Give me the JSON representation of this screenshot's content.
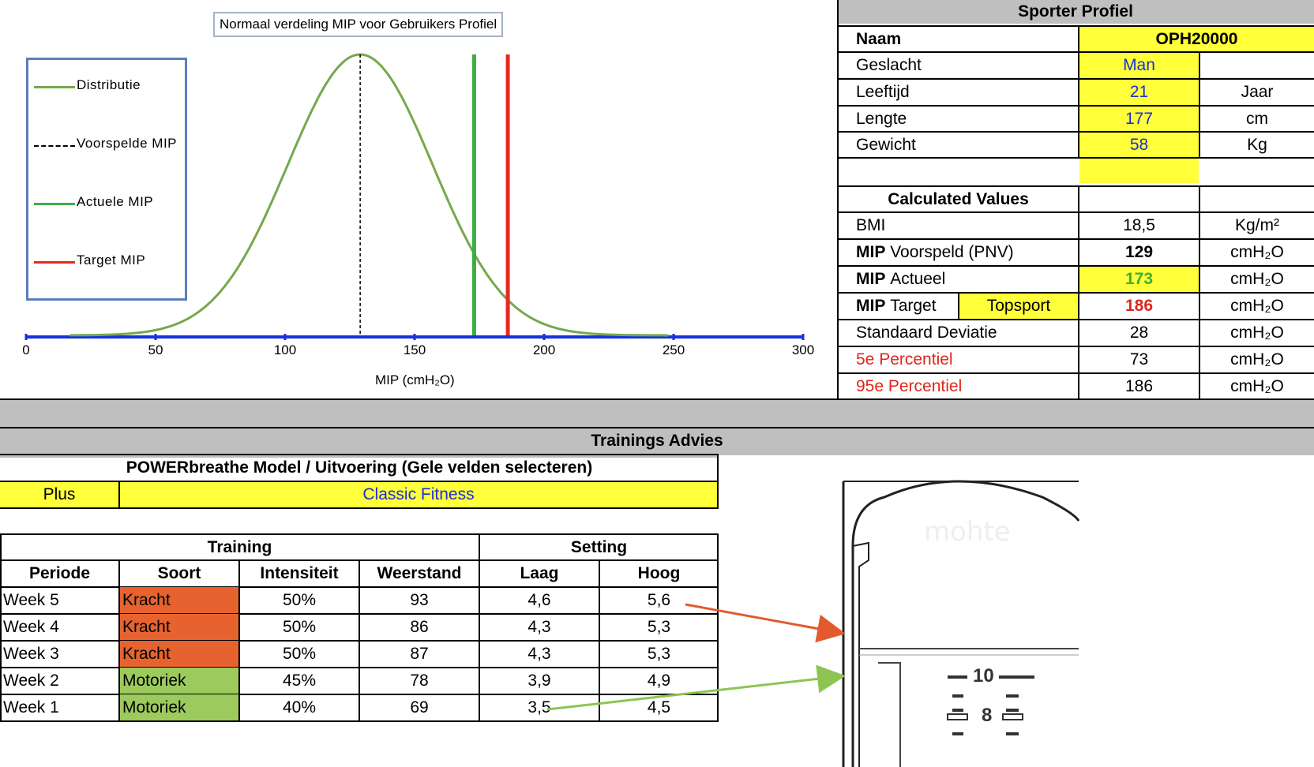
{
  "chart_data": {
    "type": "line",
    "title": "Normaal verdeling MIP voor Gebruikers Profiel",
    "xlabel": "MIP (cmH₂O)",
    "ylabel": "",
    "xlim": [
      0,
      300
    ],
    "x_ticks": [
      "0",
      "50",
      "100",
      "150",
      "200",
      "250",
      "300"
    ],
    "distribution": {
      "mean": 129,
      "sd": 28
    },
    "series": [
      {
        "name": "Distributie",
        "color": "#76a84c",
        "style": "curve"
      },
      {
        "name": "Voorspelde MIP",
        "color": "#000000",
        "style": "dashed",
        "x": 129
      },
      {
        "name": "Actuele MIP",
        "color": "#3dae46",
        "style": "solid",
        "x": 173
      },
      {
        "name": "Target MIP",
        "color": "#e8281e",
        "style": "solid",
        "x": 186
      }
    ],
    "axis_color": "#1433e0",
    "legend_position": "left"
  },
  "profile": {
    "title": "Sporter Profiel",
    "naam_label": "Naam",
    "naam_value": "OPH20000",
    "geslacht_label": "Geslacht",
    "geslacht_value": "Man",
    "leeftijd_label": "Leeftijd",
    "leeftijd_value": "21",
    "leeftijd_unit": "Jaar",
    "lengte_label": "Lengte",
    "lengte_value": "177",
    "lengte_unit": "cm",
    "gewicht_label": "Gewicht",
    "gewicht_value": "58",
    "gewicht_unit": "Kg",
    "calc_title": "Calculated Values",
    "bmi_label": "BMI",
    "bmi_value": "18,5",
    "bmi_unit": "Kg/m²",
    "mip_bold": "MIP",
    "voorspeld_label": "Voorspeld (PNV)",
    "voorspeld_value": "129",
    "actueel_label": "Actueel",
    "actueel_value": "173",
    "target_label": "Target",
    "target_level": "Topsport",
    "target_value": "186",
    "sd_label": "Standaard Deviatie",
    "sd_value": "28",
    "p5_label": "5e Percentiel",
    "p5_value": "73",
    "p95_label": "95e Percentiel",
    "p95_value": "186",
    "unit_cmh2o": "cmH₂O"
  },
  "advies": {
    "title": "Trainings Advies",
    "model_title": "POWERbreathe Model / Uitvoering (Gele velden selecteren)",
    "model": "Plus",
    "uitvoering": "Classic Fitness",
    "training_header": "Training",
    "setting_header": "Setting",
    "columns": [
      "Periode",
      "Soort",
      "Intensiteit",
      "Weerstand",
      "Laag",
      "Hoog"
    ],
    "rows": [
      {
        "periode": "Week 5",
        "soort": "Kracht",
        "intensiteit": "50%",
        "weerstand": "93",
        "laag": "4,6",
        "hoog": "5,6"
      },
      {
        "periode": "Week 4",
        "soort": "Kracht",
        "intensiteit": "50%",
        "weerstand": "86",
        "laag": "4,3",
        "hoog": "5,3"
      },
      {
        "periode": "Week 3",
        "soort": "Kracht",
        "intensiteit": "50%",
        "weerstand": "87",
        "laag": "4,3",
        "hoog": "5,3"
      },
      {
        "periode": "Week 2",
        "soort": "Motoriek",
        "intensiteit": "45%",
        "weerstand": "78",
        "laag": "3,9",
        "hoog": "4,9"
      },
      {
        "periode": "Week 1",
        "soort": "Motoriek",
        "intensiteit": "40%",
        "weerstand": "69",
        "laag": "3,5",
        "hoog": "4,5"
      }
    ],
    "kracht_color": "#e6622f",
    "motoriek_color": "#9cca5c"
  },
  "device": {
    "scale_top": "10",
    "scale_mid": "8"
  }
}
